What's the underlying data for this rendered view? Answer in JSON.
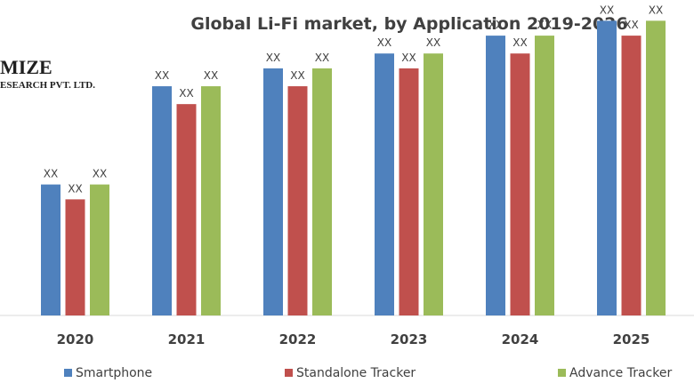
{
  "logo": {
    "main": "MIZE",
    "sub": "ESEARCH PVT. LTD."
  },
  "chart_data": {
    "type": "bar",
    "title": "Global Li-Fi market, by Application 2019-2026",
    "xlabel": "",
    "ylabel": "",
    "categories": [
      "2020",
      "2021",
      "2022",
      "2023",
      "2024",
      "2025"
    ],
    "ylim": [
      0,
      100
    ],
    "grid": false,
    "legend_position": "bottom",
    "series": [
      {
        "name": "Smartphone",
        "color": "#4f81bd",
        "values": [
          44,
          77,
          83,
          88,
          94,
          99
        ],
        "labels": [
          "XX",
          "XX",
          "XX",
          "XX",
          "XX",
          "XX"
        ]
      },
      {
        "name": "Standalone Tracker",
        "color": "#c0504d",
        "values": [
          39,
          71,
          77,
          83,
          88,
          94
        ],
        "labels": [
          "XX",
          "XX",
          "XX",
          "XX",
          "XX",
          "XX"
        ]
      },
      {
        "name": "Advance Tracker",
        "color": "#9bbb59",
        "values": [
          44,
          77,
          83,
          88,
          94,
          99
        ],
        "labels": [
          "XX",
          "XX",
          "XX",
          "XX",
          "XX",
          "XX"
        ]
      }
    ]
  }
}
